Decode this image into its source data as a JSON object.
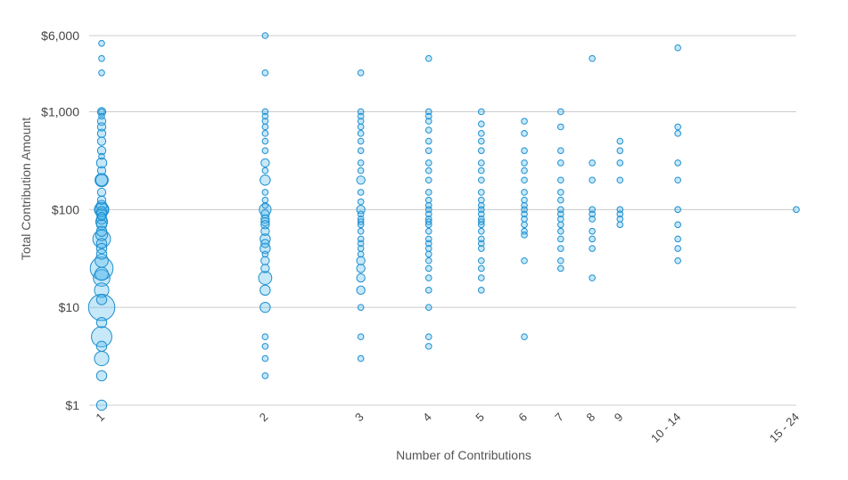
{
  "chart_data": {
    "type": "scatter",
    "title": "",
    "xlabel": "Number of Contributions",
    "ylabel": "Total Contribution Amount",
    "y_scale": "log",
    "ylim": [
      1,
      6000
    ],
    "y_ticks": [
      {
        "value": 1,
        "label": "$1"
      },
      {
        "value": 10,
        "label": "$10"
      },
      {
        "value": 100,
        "label": "$100"
      },
      {
        "value": 1000,
        "label": "$1,000"
      },
      {
        "value": 6000,
        "label": "$6,000"
      }
    ],
    "categories": [
      "1",
      "2",
      "3",
      "4",
      "5",
      "6",
      "7",
      "8",
      "9",
      "10 - 14",
      "15 - 24"
    ],
    "category_positions": [
      1,
      2,
      3,
      4,
      5,
      6,
      7,
      8,
      9,
      11.5,
      19
    ],
    "x_scale": "log",
    "grid": true,
    "legend": "none",
    "colors": {
      "stroke": "#1f8fcf",
      "fill": "#4fb8ec"
    },
    "series": [
      {
        "category": "1",
        "points": [
          [
            5000,
            1
          ],
          [
            3500,
            1
          ],
          [
            2500,
            1
          ],
          [
            1000,
            1
          ],
          [
            1000,
            2
          ],
          [
            900,
            1
          ],
          [
            800,
            2
          ],
          [
            700,
            2
          ],
          [
            600,
            2
          ],
          [
            500,
            2
          ],
          [
            400,
            2
          ],
          [
            350,
            1
          ],
          [
            300,
            3
          ],
          [
            250,
            2
          ],
          [
            200,
            4
          ],
          [
            200,
            5
          ],
          [
            150,
            2
          ],
          [
            125,
            2
          ],
          [
            110,
            3
          ],
          [
            100,
            6
          ],
          [
            100,
            5
          ],
          [
            95,
            3
          ],
          [
            90,
            3
          ],
          [
            85,
            2
          ],
          [
            80,
            3
          ],
          [
            75,
            4
          ],
          [
            70,
            3
          ],
          [
            60,
            3
          ],
          [
            55,
            4
          ],
          [
            50,
            9
          ],
          [
            45,
            3
          ],
          [
            40,
            3
          ],
          [
            35,
            3
          ],
          [
            30,
            5
          ],
          [
            25,
            15
          ],
          [
            22,
            5
          ],
          [
            20,
            8
          ],
          [
            15,
            6
          ],
          [
            12,
            3
          ],
          [
            10,
            20
          ],
          [
            7,
            3
          ],
          [
            5,
            12
          ],
          [
            4,
            3
          ],
          [
            3,
            6
          ],
          [
            2,
            3
          ],
          [
            1,
            3
          ]
        ]
      },
      {
        "category": "2",
        "points": [
          [
            6000,
            1
          ],
          [
            2500,
            1
          ],
          [
            1000,
            1
          ],
          [
            900,
            1
          ],
          [
            800,
            1
          ],
          [
            700,
            1
          ],
          [
            600,
            1
          ],
          [
            500,
            1
          ],
          [
            400,
            1
          ],
          [
            300,
            2
          ],
          [
            250,
            1
          ],
          [
            200,
            3
          ],
          [
            150,
            1
          ],
          [
            125,
            1
          ],
          [
            110,
            1
          ],
          [
            100,
            4
          ],
          [
            90,
            2
          ],
          [
            80,
            2
          ],
          [
            75,
            2
          ],
          [
            70,
            2
          ],
          [
            60,
            2
          ],
          [
            50,
            3
          ],
          [
            45,
            2
          ],
          [
            40,
            3
          ],
          [
            35,
            1
          ],
          [
            30,
            2
          ],
          [
            25,
            2
          ],
          [
            20,
            5
          ],
          [
            15,
            3
          ],
          [
            10,
            3
          ],
          [
            5,
            1
          ],
          [
            4,
            1
          ],
          [
            3,
            1
          ],
          [
            2,
            1
          ]
        ]
      },
      {
        "category": "3",
        "points": [
          [
            2500,
            1
          ],
          [
            1000,
            1
          ],
          [
            900,
            1
          ],
          [
            800,
            1
          ],
          [
            700,
            1
          ],
          [
            600,
            1
          ],
          [
            500,
            1
          ],
          [
            400,
            1
          ],
          [
            300,
            1
          ],
          [
            250,
            1
          ],
          [
            200,
            2
          ],
          [
            150,
            1
          ],
          [
            120,
            1
          ],
          [
            100,
            2
          ],
          [
            90,
            1
          ],
          [
            80,
            1
          ],
          [
            75,
            1
          ],
          [
            70,
            1
          ],
          [
            60,
            1
          ],
          [
            50,
            1
          ],
          [
            45,
            1
          ],
          [
            40,
            1
          ],
          [
            35,
            1
          ],
          [
            30,
            2
          ],
          [
            25,
            2
          ],
          [
            20,
            2
          ],
          [
            15,
            2
          ],
          [
            10,
            1
          ],
          [
            5,
            1
          ],
          [
            3,
            1
          ]
        ]
      },
      {
        "category": "4",
        "points": [
          [
            3500,
            1
          ],
          [
            1000,
            1
          ],
          [
            900,
            1
          ],
          [
            800,
            1
          ],
          [
            650,
            1
          ],
          [
            500,
            1
          ],
          [
            400,
            1
          ],
          [
            300,
            1
          ],
          [
            250,
            1
          ],
          [
            200,
            1
          ],
          [
            150,
            1
          ],
          [
            125,
            1
          ],
          [
            110,
            1
          ],
          [
            100,
            1
          ],
          [
            90,
            1
          ],
          [
            80,
            1
          ],
          [
            75,
            1
          ],
          [
            70,
            1
          ],
          [
            60,
            1
          ],
          [
            50,
            1
          ],
          [
            45,
            1
          ],
          [
            40,
            1
          ],
          [
            35,
            1
          ],
          [
            30,
            1
          ],
          [
            25,
            1
          ],
          [
            20,
            1
          ],
          [
            15,
            1
          ],
          [
            10,
            1
          ],
          [
            5,
            1
          ],
          [
            4,
            1
          ]
        ]
      },
      {
        "category": "5",
        "points": [
          [
            1000,
            1
          ],
          [
            750,
            1
          ],
          [
            600,
            1
          ],
          [
            500,
            1
          ],
          [
            400,
            1
          ],
          [
            300,
            1
          ],
          [
            250,
            1
          ],
          [
            200,
            1
          ],
          [
            150,
            1
          ],
          [
            125,
            1
          ],
          [
            110,
            1
          ],
          [
            100,
            1
          ],
          [
            90,
            1
          ],
          [
            80,
            1
          ],
          [
            75,
            1
          ],
          [
            70,
            1
          ],
          [
            60,
            1
          ],
          [
            50,
            1
          ],
          [
            45,
            1
          ],
          [
            40,
            1
          ],
          [
            30,
            1
          ],
          [
            25,
            1
          ],
          [
            20,
            1
          ],
          [
            15,
            1
          ]
        ]
      },
      {
        "category": "6",
        "points": [
          [
            800,
            1
          ],
          [
            600,
            1
          ],
          [
            400,
            1
          ],
          [
            300,
            1
          ],
          [
            250,
            1
          ],
          [
            200,
            1
          ],
          [
            150,
            1
          ],
          [
            125,
            1
          ],
          [
            110,
            1
          ],
          [
            100,
            1
          ],
          [
            90,
            1
          ],
          [
            80,
            1
          ],
          [
            70,
            1
          ],
          [
            60,
            1
          ],
          [
            55,
            1
          ],
          [
            30,
            1
          ],
          [
            5,
            1
          ]
        ]
      },
      {
        "category": "7",
        "points": [
          [
            1000,
            1
          ],
          [
            700,
            1
          ],
          [
            400,
            1
          ],
          [
            300,
            1
          ],
          [
            200,
            1
          ],
          [
            150,
            1
          ],
          [
            125,
            1
          ],
          [
            100,
            1
          ],
          [
            90,
            1
          ],
          [
            80,
            1
          ],
          [
            70,
            1
          ],
          [
            60,
            1
          ],
          [
            50,
            1
          ],
          [
            40,
            1
          ],
          [
            30,
            1
          ],
          [
            25,
            1
          ]
        ]
      },
      {
        "category": "8",
        "points": [
          [
            3500,
            1
          ],
          [
            300,
            1
          ],
          [
            200,
            1
          ],
          [
            100,
            1
          ],
          [
            90,
            1
          ],
          [
            80,
            1
          ],
          [
            60,
            1
          ],
          [
            50,
            1
          ],
          [
            40,
            1
          ],
          [
            20,
            1
          ]
        ]
      },
      {
        "category": "9",
        "points": [
          [
            500,
            1
          ],
          [
            400,
            1
          ],
          [
            300,
            1
          ],
          [
            200,
            1
          ],
          [
            100,
            1
          ],
          [
            90,
            1
          ],
          [
            80,
            1
          ],
          [
            70,
            1
          ]
        ]
      },
      {
        "category": "10 - 14",
        "points": [
          [
            4500,
            1
          ],
          [
            700,
            1
          ],
          [
            600,
            1
          ],
          [
            300,
            1
          ],
          [
            200,
            1
          ],
          [
            100,
            1
          ],
          [
            70,
            1
          ],
          [
            50,
            1
          ],
          [
            40,
            1
          ],
          [
            30,
            1
          ]
        ]
      },
      {
        "category": "15 - 24",
        "points": [
          [
            100,
            1
          ]
        ]
      }
    ]
  }
}
